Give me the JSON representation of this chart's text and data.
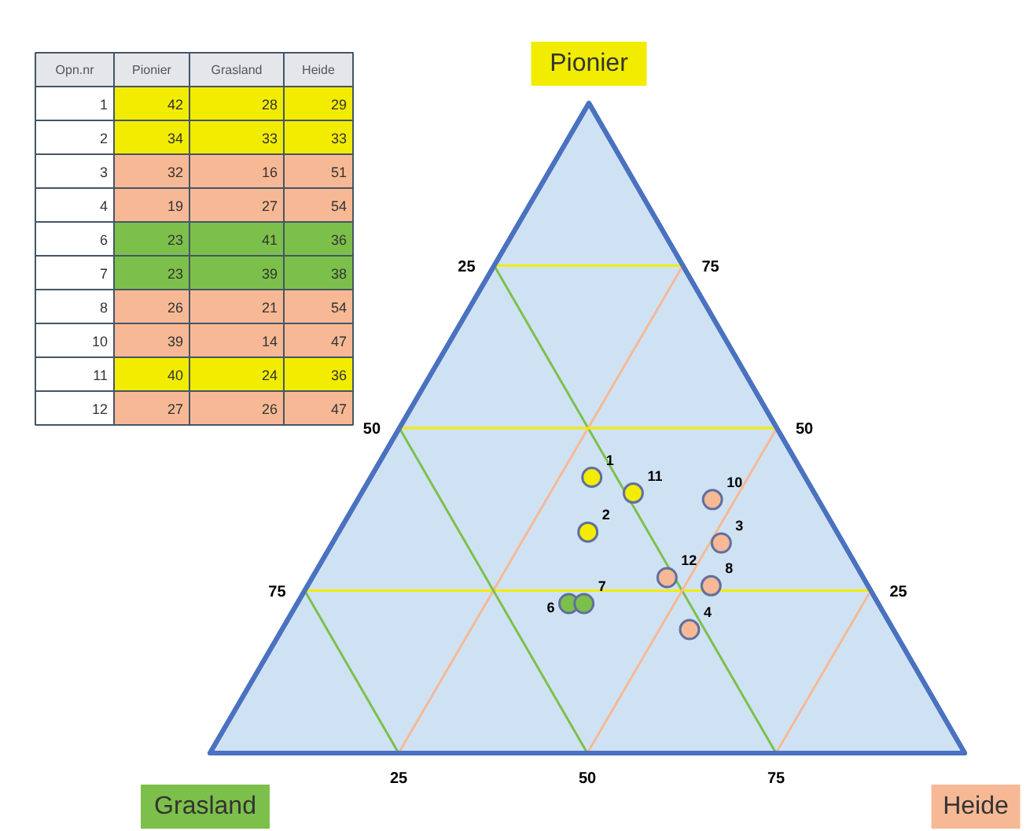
{
  "chart_data": {
    "type": "other",
    "xlabel": "Opn.nr",
    "categories": [
      "1",
      "2",
      "3",
      "4",
      "6",
      "7",
      "8",
      "10",
      "11",
      "12"
    ],
    "series": [
      {
        "name": "Pionier",
        "values": [
          42,
          34,
          32,
          19,
          23,
          23,
          26,
          39,
          40,
          27
        ],
        "colors": [
          "#f2ec00",
          "#f2ec00",
          "#f7b995",
          "#f7b995",
          "#7cc04b",
          "#7cc04b",
          "#f7b995",
          "#f7b995",
          "#f2ec00",
          "#f7b995"
        ]
      },
      {
        "name": "Grasland",
        "values": [
          28,
          33,
          16,
          27,
          41,
          39,
          21,
          14,
          24,
          26
        ],
        "colors": [
          "#f2ec00",
          "#f2ec00",
          "#f7b995",
          "#f7b995",
          "#7cc04b",
          "#7cc04b",
          "#f7b995",
          "#f7b995",
          "#f2ec00",
          "#f7b995"
        ]
      },
      {
        "name": "Heide",
        "values": [
          29,
          33,
          51,
          54,
          36,
          38,
          54,
          47,
          36,
          47
        ],
        "colors": [
          "#f2ec00",
          "#f2ec00",
          "#f7b995",
          "#f7b995",
          "#7cc04b",
          "#7cc04b",
          "#f7b995",
          "#f7b995",
          "#f2ec00",
          "#f7b995"
        ]
      }
    ],
    "colors": [
      "#f2ec00",
      "#f2ec00",
      "#f7b995",
      "#f7b995",
      "#7cc04b",
      "#7cc04b",
      "#f7b995",
      "#f7b995",
      "#f2ec00",
      "#f7b995"
    ],
    "annotations": [
      "25",
      "50",
      "75",
      "25",
      "50",
      "75",
      "25",
      "50",
      "75"
    ],
    "data_labels": true
  }
}
